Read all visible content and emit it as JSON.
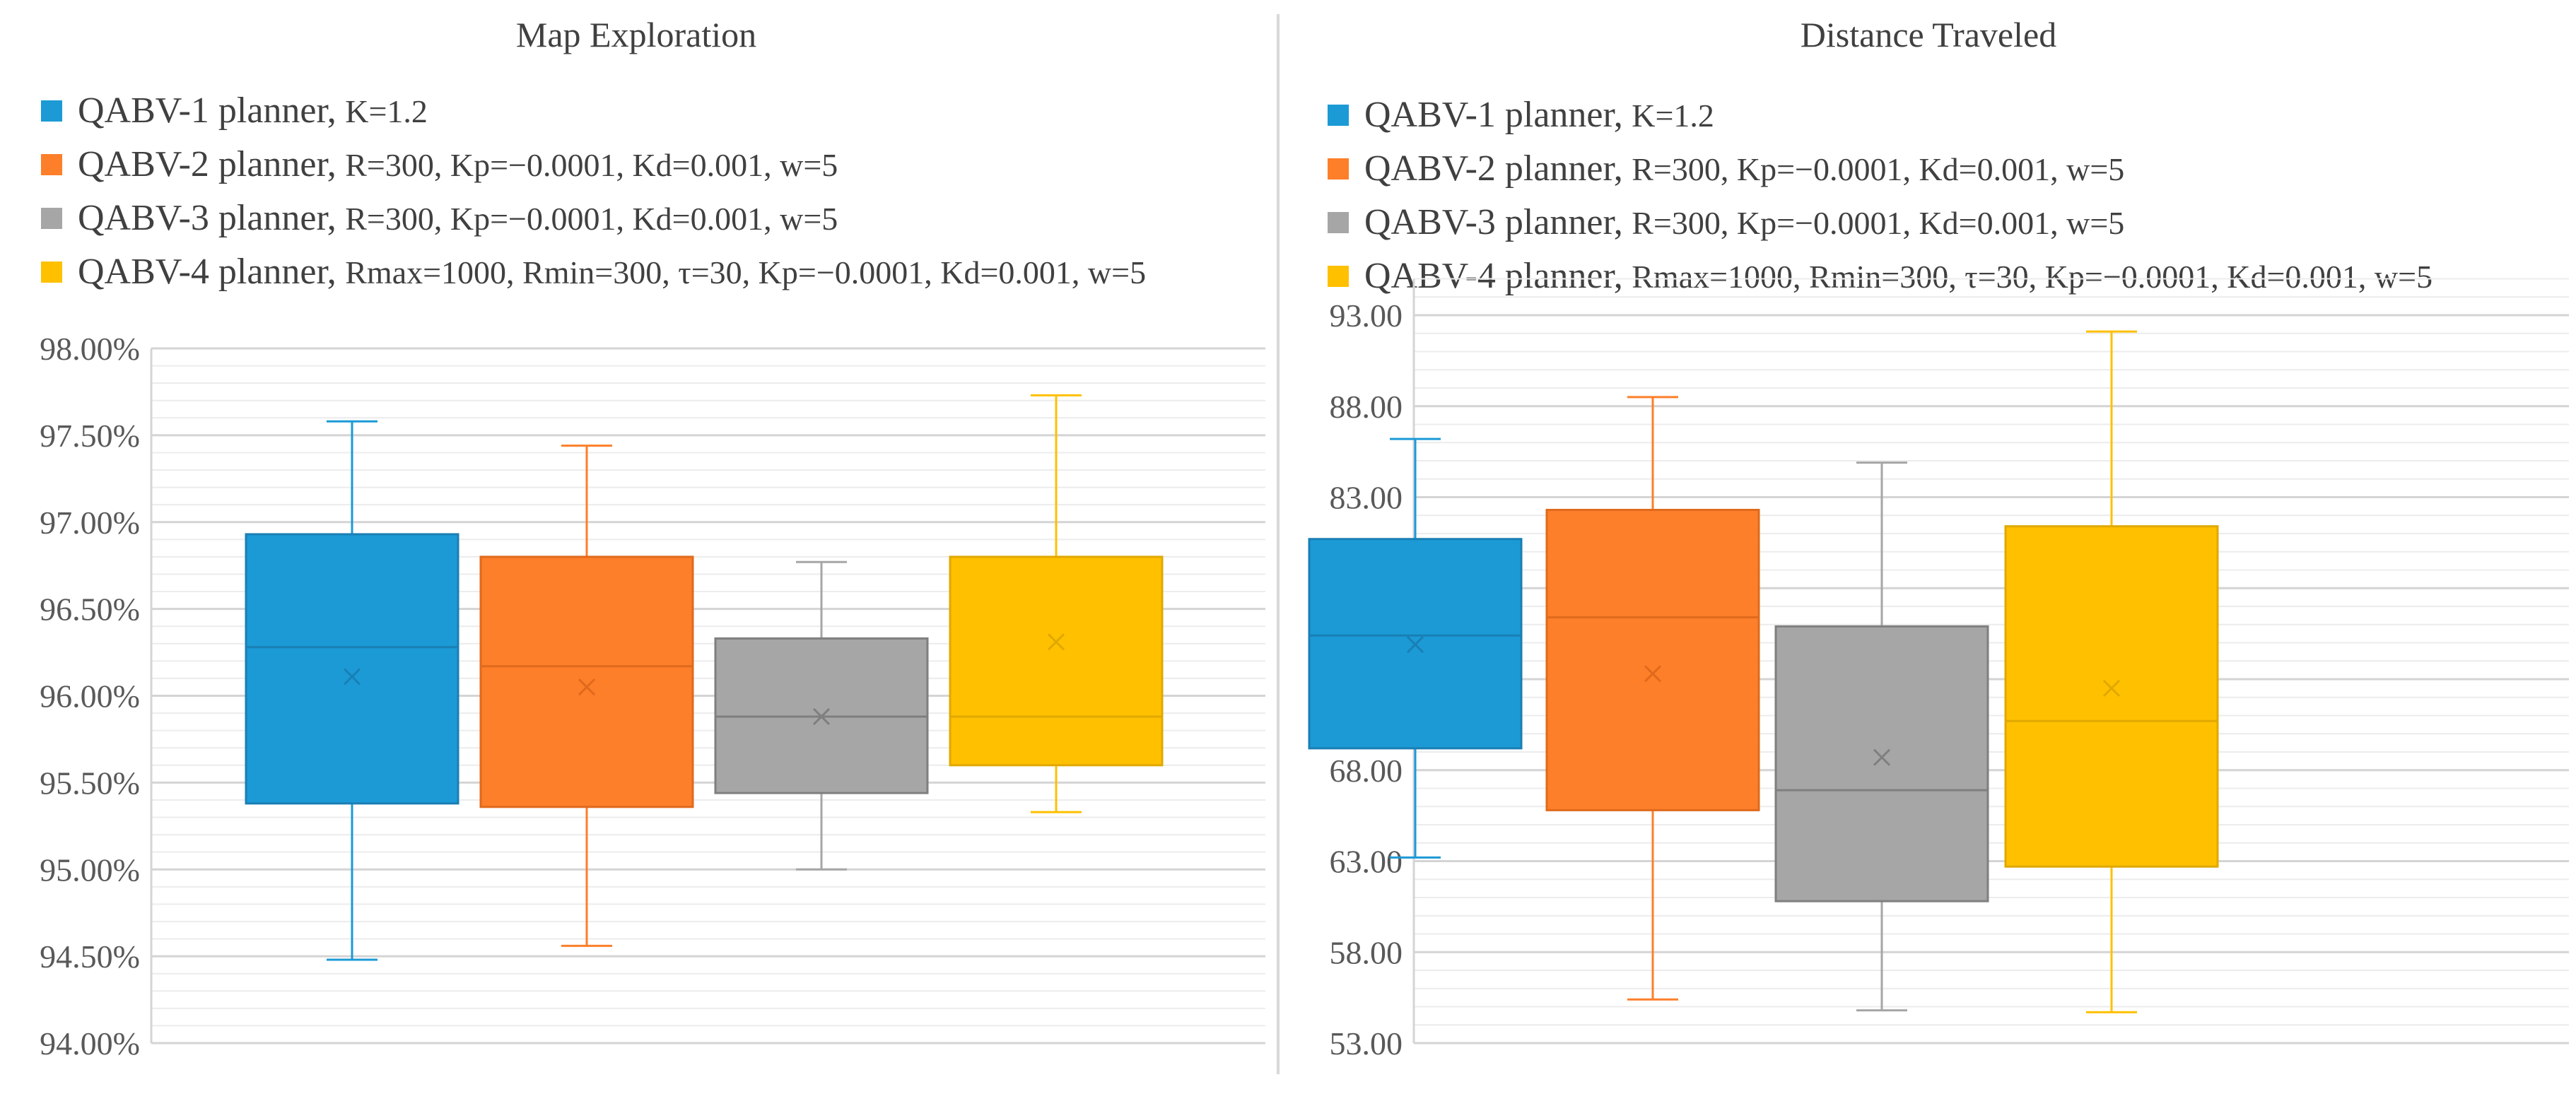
{
  "chart_data": [
    {
      "type": "boxplot",
      "title": "Map Exploration",
      "legend": [
        {
          "name": "QABV-1 planner,",
          "params": "K=1.2",
          "color": "#1b9ad6"
        },
        {
          "name": "QABV-2 planner,",
          "params": "R=300, Kp=−0.0001, Kd=0.001, w=5",
          "color": "#fd7f2a"
        },
        {
          "name": "QABV-3 planner,",
          "params": "R=300, Kp=−0.0001, Kd=0.001, w=5",
          "color": "#a6a6a6"
        },
        {
          "name": "QABV-4 planner,",
          "params": "Rmax=1000, Rmin=300, τ=30, Kp=−0.0001, Kd=0.001, w=5",
          "color": "#ffc000"
        }
      ],
      "yticks": [
        "94.00%",
        "94.50%",
        "95.00%",
        "95.50%",
        "96.00%",
        "96.50%",
        "97.00%",
        "97.50%",
        "98.00%"
      ],
      "ylim": [
        94.0,
        98.0
      ],
      "grid": true,
      "series": [
        {
          "name": "QABV-1 planner",
          "min": 94.48,
          "q1": 95.38,
          "median": 96.28,
          "q3": 96.93,
          "max": 97.58,
          "mean": 96.11
        },
        {
          "name": "QABV-2 planner",
          "min": 94.56,
          "q1": 95.36,
          "median": 96.17,
          "q3": 96.8,
          "max": 97.44,
          "mean": 96.05
        },
        {
          "name": "QABV-3 planner",
          "min": 95.0,
          "q1": 95.44,
          "median": 95.88,
          "q3": 96.33,
          "max": 96.77,
          "mean": 95.88
        },
        {
          "name": "QABV-4 planner",
          "min": 95.33,
          "q1": 95.6,
          "median": 95.88,
          "q3": 96.8,
          "max": 97.73,
          "mean": 96.31
        }
      ]
    },
    {
      "type": "boxplot",
      "title": "Distance Traveled",
      "legend": [
        {
          "name": "QABV-1 planner,",
          "params": "K=1.2",
          "color": "#1b9ad6"
        },
        {
          "name": "QABV-2 planner,",
          "params": "R=300, Kp=−0.0001, Kd=0.001, w=5",
          "color": "#fd7f2a"
        },
        {
          "name": "QABV-3 planner,",
          "params": "R=300, Kp=−0.0001, Kd=0.001, w=5",
          "color": "#a6a6a6"
        },
        {
          "name": "QABV-4 planner,",
          "params": "Rmax=1000, Rmin=300, τ=30, Kp=−0.0001, Kd=0.001, w=5",
          "color": "#ffc000"
        }
      ],
      "yticks": [
        "53.00",
        "58.00",
        "63.00",
        "68.00",
        "73.00",
        "78.00",
        "83.00",
        "88.00",
        "93.00"
      ],
      "ylim": [
        53.0,
        95.0
      ],
      "grid": true,
      "series": [
        {
          "name": "QABV-1 planner",
          "min": 63.2,
          "q1": 69.2,
          "median": 75.4,
          "q3": 80.7,
          "max": 86.2,
          "mean": 74.9
        },
        {
          "name": "QABV-2 planner",
          "min": 55.4,
          "q1": 65.8,
          "median": 76.4,
          "q3": 82.3,
          "max": 88.5,
          "mean": 73.3
        },
        {
          "name": "QABV-3 planner",
          "min": 54.8,
          "q1": 60.8,
          "median": 66.9,
          "q3": 75.9,
          "max": 84.9,
          "mean": 68.7
        },
        {
          "name": "QABV-4 planner",
          "min": 54.7,
          "q1": 62.7,
          "median": 70.7,
          "q3": 81.4,
          "max": 92.1,
          "mean": 72.5
        }
      ]
    }
  ]
}
